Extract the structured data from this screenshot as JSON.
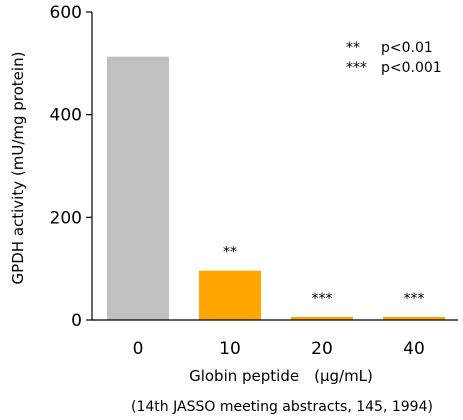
{
  "chart_data": {
    "type": "bar",
    "categories": [
      "0",
      "10",
      "20",
      "40"
    ],
    "values": [
      513,
      96,
      6,
      6
    ],
    "significance": [
      "",
      "**",
      "***",
      "***"
    ],
    "xlabel": "Globin peptide　(μg/mL)",
    "ylabel": "GPDH activity (mU/mg protein)",
    "ylim": [
      0,
      600
    ],
    "yticks": [
      "0",
      "200",
      "400",
      "600"
    ],
    "bar_colors": [
      "#c0c0c0",
      "#ffa500",
      "#ffa500",
      "#ffa500"
    ],
    "grid": false,
    "legend": {
      "placement": "top-right",
      "entries": [
        {
          "symbol": "**",
          "text": "p<0.01"
        },
        {
          "symbol": "***",
          "text": "p<0.001"
        }
      ]
    },
    "source": "(14th JASSO meeting abstracts, 145, 1994)"
  }
}
